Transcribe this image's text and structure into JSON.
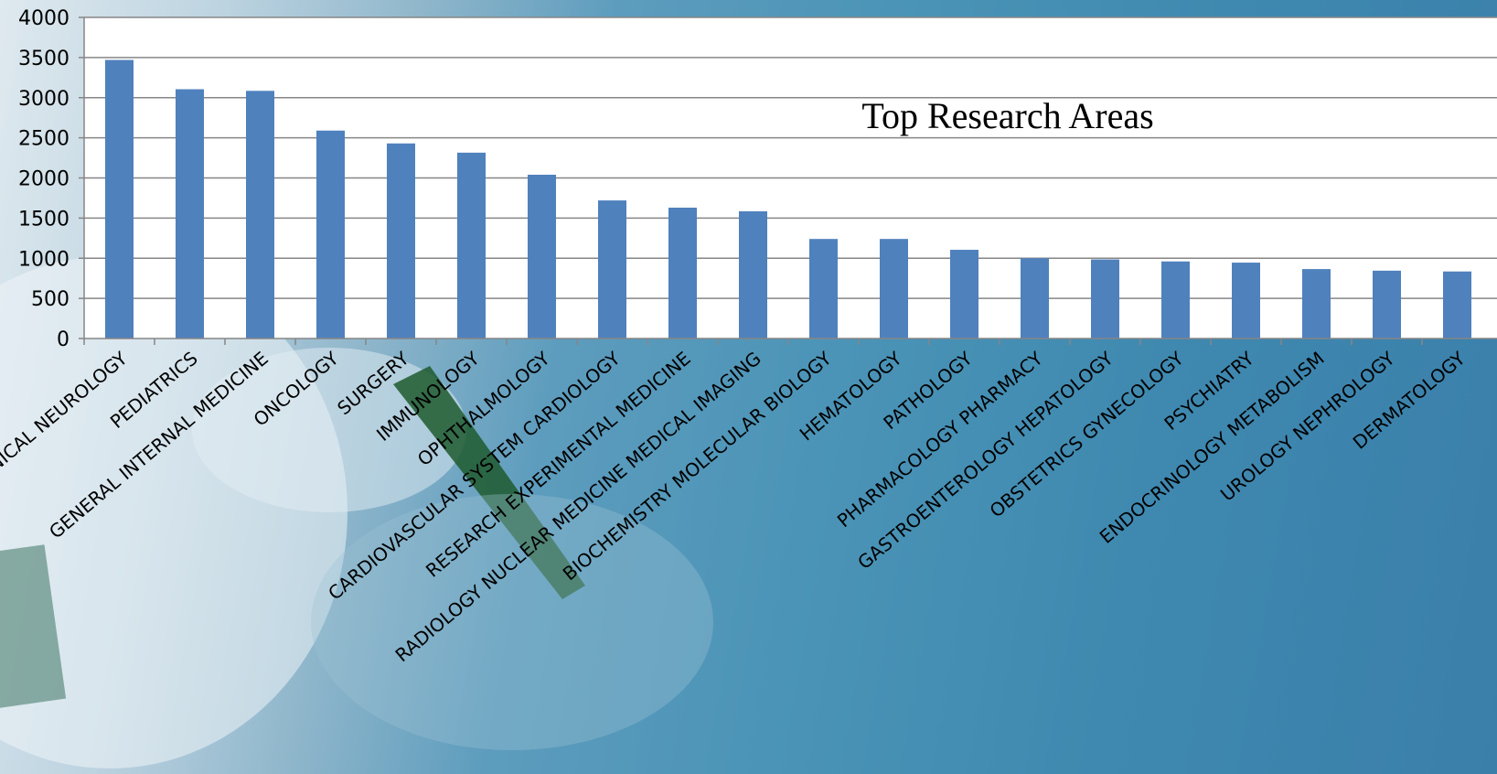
{
  "chart_data": {
    "type": "bar",
    "title": "Top Research Areas",
    "xlabel": "",
    "ylabel": "",
    "ylim": [
      0,
      4000
    ],
    "yticks": [
      0,
      500,
      1000,
      1500,
      2000,
      2500,
      3000,
      3500,
      4000
    ],
    "grid": true,
    "legend": "none",
    "bar_color": "#4f81bd",
    "categories": [
      "CLINICAL NEUROLOGY",
      "PEDIATRICS",
      "GENERAL INTERNAL MEDICINE",
      "ONCOLOGY",
      "SURGERY",
      "IMMUNOLOGY",
      "OPHTHALMOLOGY",
      "CARDIOVASCULAR SYSTEM CARDIOLOGY",
      "RESEARCH EXPERIMENTAL MEDICINE",
      "RADIOLOGY NUCLEAR MEDICINE MEDICAL IMAGING",
      "BIOCHEMISTRY MOLECULAR BIOLOGY",
      "HEMATOLOGY",
      "PATHOLOGY",
      "PHARMACOLOGY PHARMACY",
      "GASTROENTEROLOGY HEPATOLOGY",
      "OBSTETRICS GYNECOLOGY",
      "PSYCHIATRY",
      "ENDOCRINOLOGY METABOLISM",
      "UROLOGY NEPHROLOGY",
      "DERMATOLOGY"
    ],
    "values": [
      3470,
      3105,
      3085,
      2590,
      2430,
      2315,
      2040,
      1720,
      1630,
      1585,
      1240,
      1240,
      1105,
      1000,
      985,
      960,
      945,
      865,
      845,
      835
    ]
  }
}
